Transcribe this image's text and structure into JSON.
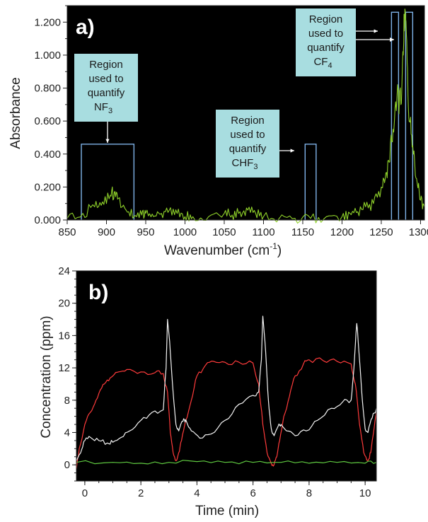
{
  "chart_data": [
    {
      "type": "line",
      "panel_label": "a)",
      "xlabel": "Wavenumber (cm",
      "xlabel_sup": "-1",
      "xlabel_end": ")",
      "ylabel": "Absorbance",
      "xlim": [
        850,
        1305
      ],
      "ylim": [
        0,
        1.3
      ],
      "xticks": [
        850,
        900,
        950,
        1000,
        1050,
        1100,
        1150,
        1200,
        1250,
        1300
      ],
      "yticks": [
        {
          "v": 0,
          "label": "0.000"
        },
        {
          "v": 0.2,
          "label": "0.200"
        },
        {
          "v": 0.4,
          "label": "0.400"
        },
        {
          "v": 0.6,
          "label": "0.600"
        },
        {
          "v": 0.8,
          "label": "0.800"
        },
        {
          "v": 1.0,
          "label": "1.000"
        },
        {
          "v": 1.2,
          "label": "1.200"
        }
      ],
      "background": "#000000",
      "series": [
        {
          "color": "#8fd12a",
          "x": [
            850,
            870,
            885,
            895,
            905,
            910,
            915,
            925,
            935,
            945,
            950,
            960,
            970,
            980,
            990,
            1000,
            1010,
            1030,
            1050,
            1060,
            1070,
            1080,
            1090,
            1100,
            1120,
            1140,
            1160,
            1180,
            1200,
            1210,
            1220,
            1230,
            1240,
            1250,
            1255,
            1260,
            1265,
            1270,
            1275,
            1278,
            1280,
            1283,
            1286,
            1290,
            1295,
            1300,
            1305
          ],
          "y": [
            0.01,
            0.04,
            0.08,
            0.11,
            0.15,
            0.17,
            0.13,
            0.06,
            0.02,
            0.03,
            0.04,
            0.02,
            0.04,
            0.06,
            0.04,
            0.02,
            0.02,
            0.02,
            0.04,
            0.03,
            0.05,
            0.06,
            0.04,
            0.02,
            0.01,
            0.01,
            0.01,
            0.02,
            0.02,
            0.04,
            0.05,
            0.08,
            0.1,
            0.2,
            0.25,
            0.35,
            0.55,
            0.75,
            0.7,
            1.0,
            1.28,
            0.95,
            0.6,
            0.45,
            0.25,
            0.12,
            0.08
          ]
        }
      ],
      "regions": [
        {
          "x0": 868,
          "x1": 935,
          "top": 0.46
        },
        {
          "x0": 1153,
          "x1": 1167,
          "top": 0.46
        },
        {
          "x0": 1263,
          "x1": 1272,
          "top": 1.26
        },
        {
          "x0": 1281,
          "x1": 1290,
          "top": 1.26
        }
      ],
      "callouts": [
        {
          "lines": [
            "Region",
            "used to",
            "quantify"
          ],
          "species": "NF",
          "sub": "3"
        },
        {
          "lines": [
            "Region",
            "used to",
            "quantify"
          ],
          "species": "CHF",
          "sub": "3"
        },
        {
          "lines": [
            "Region",
            "used to",
            "quantify"
          ],
          "species": "CF",
          "sub": "4"
        }
      ],
      "callout_color": "#a8dde0"
    },
    {
      "type": "line",
      "panel_label": "b)",
      "xlabel": "Time (min)",
      "ylabel": "Concentration (ppm)",
      "xlim": [
        -0.3,
        10.4
      ],
      "ylim": [
        -2,
        24
      ],
      "xticks": [
        0,
        2,
        4,
        6,
        8,
        10
      ],
      "yticks": [
        0,
        4,
        8,
        12,
        16,
        20,
        24
      ],
      "background": "#000000",
      "series": [
        {
          "color": "#ff3b3b",
          "x": [
            -0.3,
            -0.2,
            0,
            0.2,
            0.4,
            0.6,
            0.8,
            1.0,
            1.2,
            1.5,
            2.0,
            2.5,
            2.8,
            2.95,
            3.05,
            3.15,
            3.25,
            3.35,
            3.45,
            3.6,
            3.8,
            4.0,
            4.3,
            4.6,
            5.0,
            5.5,
            6.0,
            6.2,
            6.35,
            6.5,
            6.65,
            6.75,
            6.85,
            6.95,
            7.1,
            7.3,
            7.5,
            7.8,
            8.0,
            8.5,
            9.0,
            9.5,
            9.65,
            9.8,
            9.95,
            10.1,
            10.2,
            10.3,
            10.4
          ],
          "y": [
            -0.5,
            2,
            5,
            6.5,
            8,
            9.5,
            10.5,
            11,
            11.5,
            11.8,
            11.5,
            11.4,
            11.3,
            9,
            4,
            1.5,
            0.5,
            1.5,
            3,
            5.5,
            8,
            11,
            12.3,
            12.8,
            12.7,
            12.7,
            12.6,
            10,
            5,
            1.5,
            0.2,
            0,
            1,
            3,
            6,
            8.5,
            11,
            12.5,
            13,
            12.9,
            12.8,
            12.5,
            10,
            5,
            1.5,
            0.5,
            1.5,
            4,
            6.5
          ]
        },
        {
          "color": "#f4f4f4",
          "x": [
            -0.3,
            -0.1,
            0,
            0.2,
            0.5,
            0.8,
            1.0,
            1.3,
            1.6,
            2.0,
            2.4,
            2.8,
            2.9,
            2.95,
            3.05,
            3.15,
            3.25,
            3.35,
            3.5,
            3.6,
            3.8,
            4.1,
            4.5,
            5.0,
            5.5,
            6.0,
            6.2,
            6.3,
            6.35,
            6.45,
            6.55,
            6.65,
            6.75,
            6.9,
            7.0,
            7.2,
            7.5,
            7.9,
            8.3,
            8.8,
            9.2,
            9.5,
            9.6,
            9.7,
            9.8,
            9.9,
            10.0,
            10.1,
            10.25,
            10.4
          ],
          "y": [
            0.5,
            2,
            3,
            3.4,
            3,
            2.7,
            2.8,
            3.4,
            4.2,
            5.5,
            6.5,
            6.8,
            12,
            18,
            14,
            9,
            5,
            4.2,
            5.4,
            5.6,
            4.2,
            3.3,
            3.8,
            5.5,
            7.5,
            8.6,
            9,
            13,
            18.4,
            14,
            8,
            4.5,
            3.6,
            4.8,
            5,
            4.2,
            3.6,
            4.2,
            5.5,
            7,
            7.8,
            8,
            12,
            17.5,
            13,
            8,
            4.5,
            4,
            5.8,
            7
          ]
        },
        {
          "color": "#5fc940",
          "x": [
            -0.3,
            1,
            2,
            3,
            4,
            5,
            6,
            7,
            8,
            9,
            10,
            10.4
          ],
          "y": [
            0.3,
            0.3,
            0.2,
            0.3,
            0.4,
            0.3,
            0.3,
            0.3,
            0.2,
            0.3,
            0.2,
            0.3
          ]
        }
      ]
    }
  ]
}
